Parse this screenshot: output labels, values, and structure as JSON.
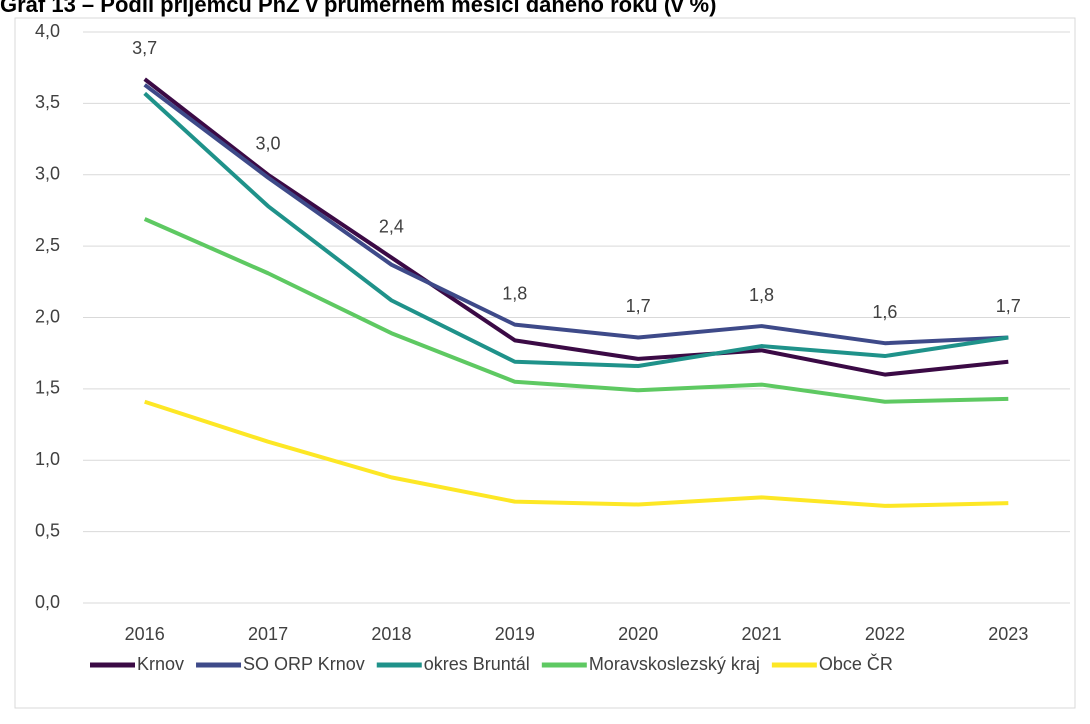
{
  "chart_data": {
    "type": "line",
    "title": "Graf 13 – Podíl příjemců PnŽ v průměrném měsíci daného roku (v %)",
    "categories": [
      "2016",
      "2017",
      "2018",
      "2019",
      "2020",
      "2021",
      "2022",
      "2023"
    ],
    "series": [
      {
        "name": "Krnov",
        "color": "#3b0a45",
        "values": [
          3.67,
          3.0,
          2.42,
          1.84,
          1.71,
          1.77,
          1.6,
          1.69
        ],
        "value_labels": [
          "3,7",
          "3,0",
          "2,4",
          "1,8",
          "1,7",
          "1,8",
          "1,6",
          "1,7"
        ]
      },
      {
        "name": "SO ORP Krnov",
        "color": "#3e4a89",
        "values": [
          3.63,
          2.98,
          2.37,
          1.95,
          1.86,
          1.94,
          1.82,
          1.86
        ]
      },
      {
        "name": "okres Bruntál",
        "color": "#1f928a",
        "values": [
          3.57,
          2.78,
          2.12,
          1.69,
          1.66,
          1.8,
          1.73,
          1.86
        ]
      },
      {
        "name": "Moravskoslezský kraj",
        "color": "#5ec962",
        "values": [
          2.69,
          2.31,
          1.89,
          1.55,
          1.49,
          1.53,
          1.41,
          1.43
        ]
      },
      {
        "name": "Obce ČR",
        "color": "#fde725",
        "values": [
          1.41,
          1.13,
          0.88,
          0.71,
          0.69,
          0.74,
          0.68,
          0.7
        ]
      }
    ],
    "ylim": [
      0,
      4
    ],
    "yticks": [
      {
        "value": 0,
        "label": "0,0"
      },
      {
        "value": 0.5,
        "label": "0,5"
      },
      {
        "value": 1,
        "label": "1,0"
      },
      {
        "value": 1.5,
        "label": "1,5"
      },
      {
        "value": 2,
        "label": "2,0"
      },
      {
        "value": 2.5,
        "label": "2,5"
      },
      {
        "value": 3,
        "label": "3,0"
      },
      {
        "value": 3.5,
        "label": "3,5"
      },
      {
        "value": 4,
        "label": "4,0"
      }
    ],
    "grid": true,
    "legend": "bottom"
  }
}
